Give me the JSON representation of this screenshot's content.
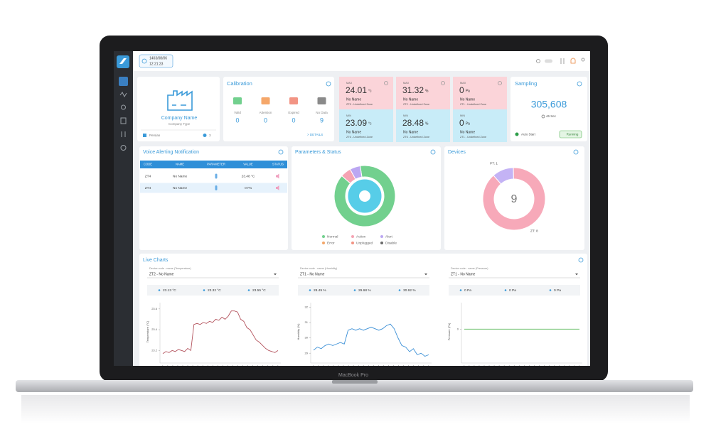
{
  "header": {
    "date": "1403/08/06",
    "time": "12:21:23"
  },
  "company": {
    "name": "Company Name",
    "type": "Company Type",
    "language": "Persian",
    "count": "3"
  },
  "calibration": {
    "title": "Calibration",
    "items": [
      {
        "label": "Valid",
        "value": 0
      },
      {
        "label": "Attention",
        "value": 0
      },
      {
        "label": "Expired",
        "value": 0
      },
      {
        "label": "No Data",
        "value": 9
      }
    ],
    "details": "> DETAILS"
  },
  "sensors": [
    {
      "max": {
        "tag": "MAX",
        "value": "24.01",
        "unit": "°c",
        "name": "No Name",
        "zone": "ZT5 - Undefined Zone"
      },
      "min": {
        "tag": "MIN",
        "value": "23.09",
        "unit": "°c",
        "name": "No Name",
        "zone": "ZT6 - Undefined Zone"
      }
    },
    {
      "max": {
        "tag": "MAX",
        "value": "31.32",
        "unit": "%",
        "name": "No Name",
        "zone": "ZT2 - Undefined Zone"
      },
      "min": {
        "tag": "MIN",
        "value": "28.48",
        "unit": "%",
        "name": "No Name",
        "zone": "ZT6 - Undefined Zone"
      }
    },
    {
      "max": {
        "tag": "MAX",
        "value": "0",
        "unit": "Pa",
        "name": "No Name",
        "zone": "ZT1 - Undefined Zone"
      },
      "min": {
        "tag": "MIN",
        "value": "0",
        "unit": "Pa",
        "name": "No Name",
        "zone": "ZT1 - Undefined Zone"
      }
    }
  ],
  "sampling": {
    "title": "Sampling",
    "count": "305,608",
    "interval": "46 Sec",
    "auto": "Auto Start",
    "status": "Running"
  },
  "voice": {
    "title": "Voice Alerting Notification",
    "columns": [
      "CODE",
      "NAME",
      "PARAMETER",
      "VALUE",
      "STATUS"
    ],
    "rows": [
      [
        "ZT4",
        "No Name",
        "23.48 °C"
      ],
      [
        "ZT4",
        "No Name",
        "0 Pa"
      ]
    ]
  },
  "live": {
    "title": "Live Charts",
    "panels": [
      {
        "label": "Device code - name (Temperature)",
        "device": "ZT2 - No Name",
        "stats": [
          "23.13 °C",
          "23.32 °C",
          "23.55 °C"
        ]
      },
      {
        "label": "Device code - name (Humidity)",
        "device": "ZT1 - No Name",
        "stats": [
          "28.49 %",
          "29.68 %",
          "30.92 %"
        ]
      },
      {
        "label": "Device code - name (Pressure)",
        "device": "ZT1 - No Name",
        "stats": [
          "0 Pa",
          "0 Pa",
          "0 Pa"
        ]
      }
    ]
  },
  "laptop": "MacBook Pro",
  "chart_data": [
    {
      "type": "pie",
      "title": "Parameters & Status",
      "categories": [
        "Normal",
        "Action",
        "Alert",
        "Error",
        "Unplugged",
        "Disable"
      ],
      "values": [
        16,
        1,
        1,
        0,
        0,
        0
      ],
      "colors": [
        "#72d08e",
        "#f5a3b3",
        "#bba7f2",
        "#f3a76a",
        "#f29484",
        "#6b6b6b"
      ]
    },
    {
      "type": "pie",
      "title": "Devices",
      "categories": [
        "PT",
        "ZT"
      ],
      "values": [
        1,
        8
      ],
      "value_labels": [
        "PT: 1",
        "ZT: 8"
      ],
      "colors": [
        "#c4b3f5",
        "#f7a9b9"
      ],
      "total": 9
    },
    {
      "type": "line",
      "ylabel": "Temperature (°C)",
      "ylim": [
        23.1,
        23.66
      ],
      "yticks": [
        23.2,
        23.4,
        23.6
      ],
      "color": "#b4545e",
      "values": [
        23.17,
        23.19,
        23.18,
        23.2,
        23.19,
        23.21,
        23.2,
        23.19,
        23.22,
        23.2,
        23.45,
        23.46,
        23.45,
        23.47,
        23.46,
        23.48,
        23.47,
        23.5,
        23.49,
        23.52,
        23.5,
        23.53,
        23.58,
        23.58,
        23.57,
        23.5,
        23.48,
        23.42,
        23.4,
        23.35,
        23.3,
        23.28,
        23.25,
        23.22,
        23.2,
        23.19,
        23.18,
        23.2
      ]
    },
    {
      "type": "line",
      "ylabel": "Humidity (%)",
      "ylim": [
        28.5,
        32.3
      ],
      "yticks": [
        29,
        30,
        31,
        32
      ],
      "color": "#3a8fd6",
      "values": [
        29.2,
        29.4,
        29.3,
        29.5,
        29.6,
        29.5,
        29.6,
        29.7,
        29.6,
        30.5,
        30.6,
        30.5,
        30.6,
        30.5,
        30.6,
        30.7,
        30.6,
        30.5,
        30.6,
        30.8,
        30.9,
        30.6,
        30.0,
        29.5,
        29.4,
        29.1,
        29.3,
        28.9,
        29.0,
        28.8,
        28.9
      ]
    },
    {
      "type": "line",
      "ylabel": "Pressure (Pa)",
      "ylim": [
        -1.2,
        1
      ],
      "yticks": [
        0
      ],
      "color": "#5cb85c",
      "values": [
        0,
        0,
        0,
        0,
        0,
        0,
        0,
        0,
        0,
        0,
        0,
        0,
        0,
        0,
        0,
        0,
        0,
        0,
        0,
        0,
        0,
        0,
        0,
        0,
        0,
        0,
        0,
        0,
        0,
        0
      ]
    }
  ]
}
